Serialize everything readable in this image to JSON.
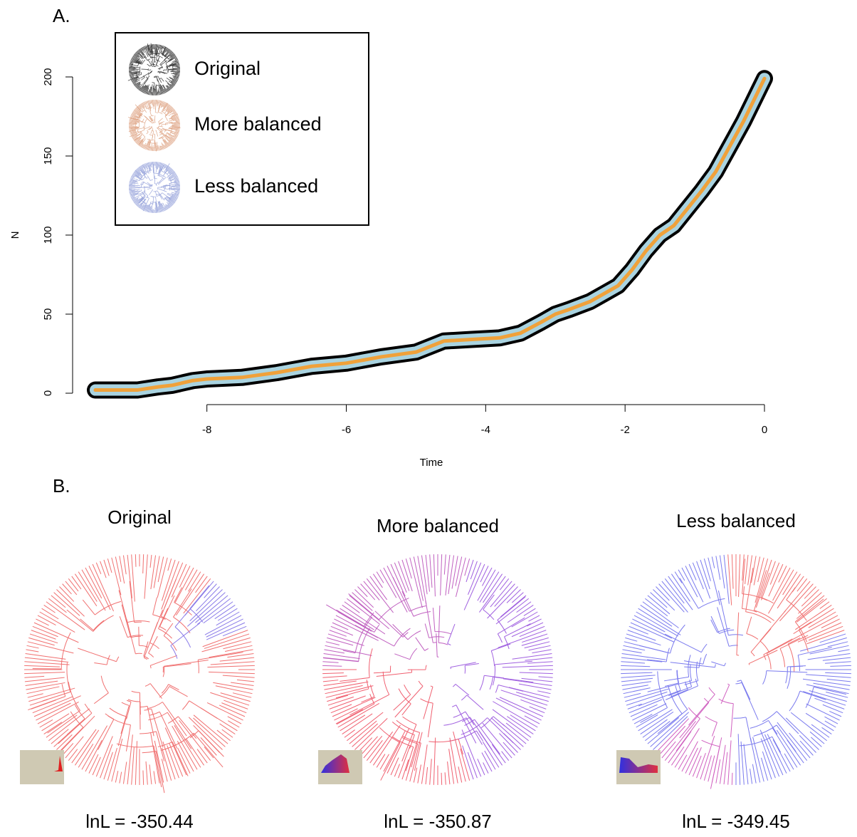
{
  "panel_labels": [
    "A.",
    "B."
  ],
  "chart_data": {
    "type": "line",
    "xlabel": "Time",
    "ylabel": "N",
    "x": [
      -9.6,
      -9,
      -8.7,
      -8.5,
      -8.2,
      -8,
      -7.5,
      -7,
      -6.5,
      -6,
      -5.5,
      -5,
      -4.6,
      -4.2,
      -3.8,
      -3.5,
      -3.2,
      -3,
      -2.8,
      -2.5,
      -2.3,
      -2.1,
      -1.9,
      -1.7,
      -1.5,
      -1.3,
      -1.1,
      -0.9,
      -0.7,
      -0.5,
      -0.3,
      -0.1,
      0
    ],
    "series": [
      {
        "name": "Original",
        "color": "#000000",
        "values": [
          2,
          2,
          4,
          5,
          8,
          9,
          10,
          13,
          17,
          19,
          23,
          26,
          33,
          34,
          35,
          38,
          45,
          50,
          53,
          58,
          63,
          68,
          78,
          90,
          100,
          106,
          117,
          128,
          140,
          156,
          172,
          190,
          199
        ]
      },
      {
        "name": "More  balanced",
        "color": "#a9d3e0",
        "values": [
          2,
          2,
          4,
          5,
          8,
          9,
          10,
          13,
          17,
          19,
          23,
          26,
          33,
          34,
          35,
          38,
          45,
          50,
          53,
          58,
          63,
          68,
          78,
          90,
          100,
          106,
          117,
          128,
          140,
          156,
          172,
          190,
          199
        ]
      },
      {
        "name": "Less balanced",
        "color": "#f0a13a",
        "values": [
          2,
          2,
          4,
          5,
          8,
          9,
          10,
          13,
          17,
          19,
          23,
          26,
          33,
          34,
          35,
          38,
          45,
          50,
          53,
          58,
          63,
          68,
          78,
          90,
          100,
          106,
          117,
          128,
          140,
          156,
          172,
          190,
          199
        ]
      }
    ],
    "xlim": [
      -9.6,
      0
    ],
    "ylim": [
      0,
      200
    ],
    "xticks": [
      -8,
      -6,
      -4,
      -2,
      0
    ],
    "yticks": [
      0,
      50,
      100,
      150,
      200
    ],
    "grid": false
  },
  "trees": [
    {
      "title": "Original",
      "lnl": "lnL = -350.44"
    },
    {
      "title": "More balanced",
      "lnl": "lnL = -350.87"
    },
    {
      "title": "Less balanced",
      "lnl": "lnL = -349.45"
    }
  ]
}
